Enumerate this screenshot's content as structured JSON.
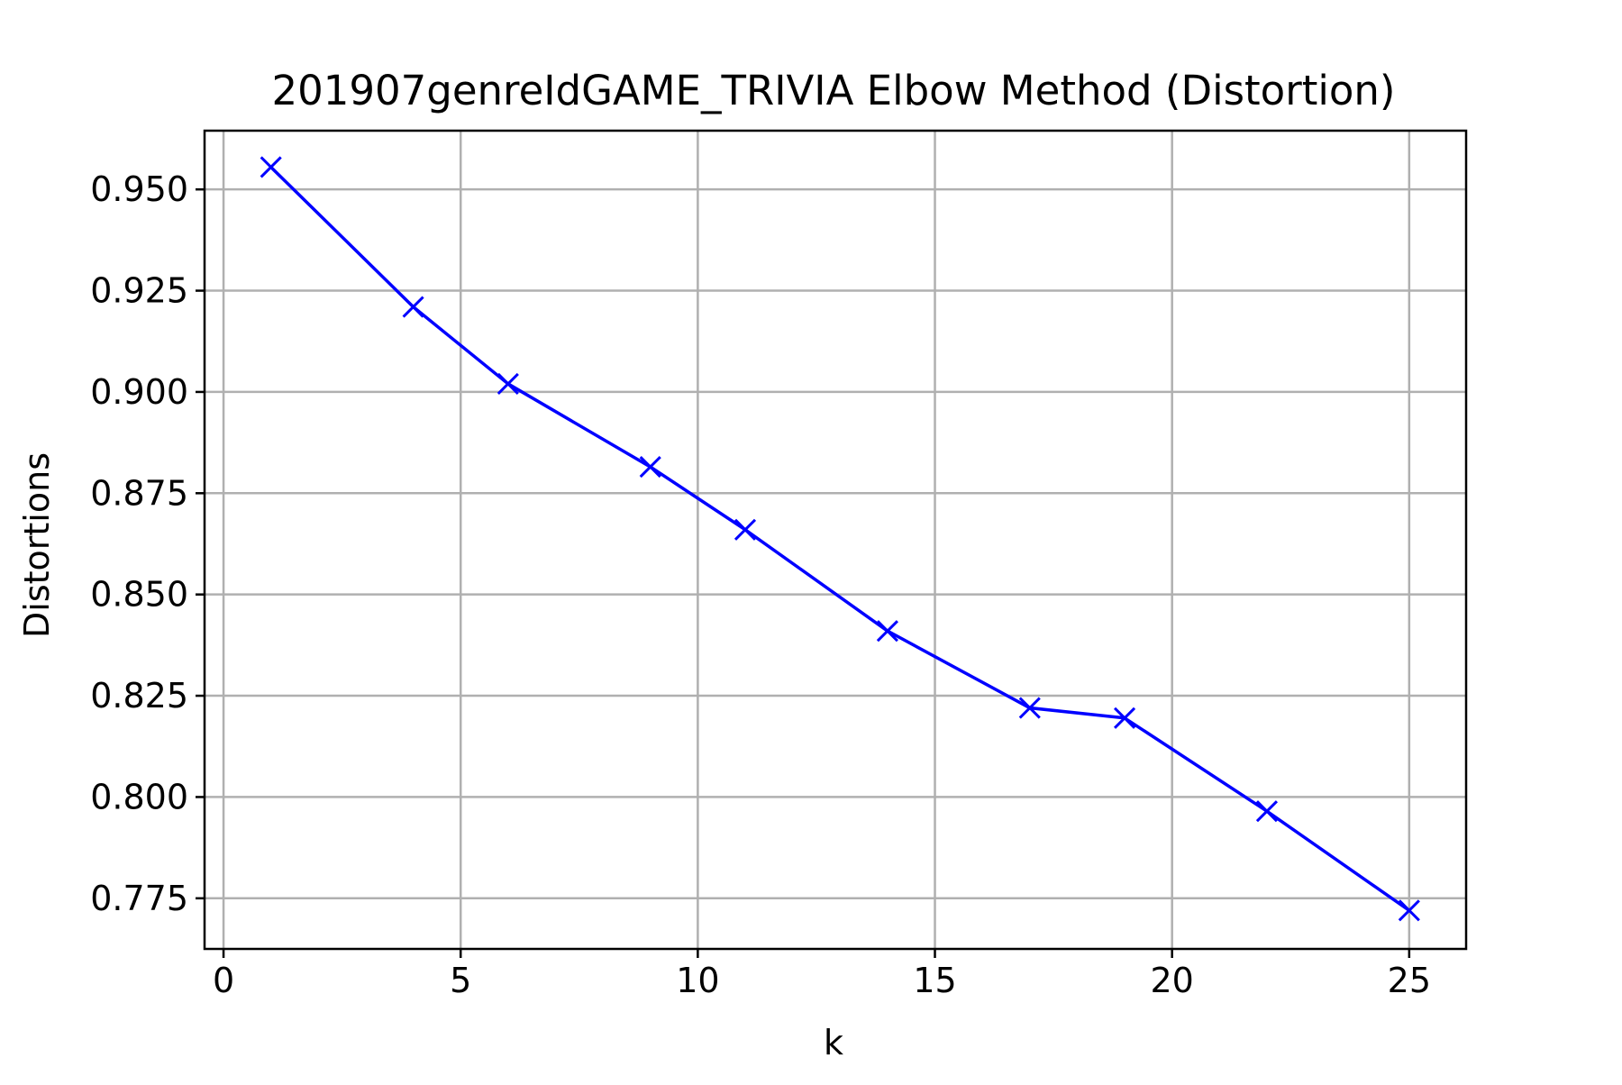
{
  "chart_data": {
    "type": "line",
    "title": "201907genreIdGAME_TRIVIA Elbow Method (Distortion)",
    "xlabel": "k",
    "ylabel": "Distortions",
    "xlim": [
      -0.4,
      26.2
    ],
    "ylim": [
      0.7625,
      0.9645
    ],
    "xticks": [
      0,
      5,
      10,
      15,
      20,
      25
    ],
    "xtick_labels": [
      "0",
      "5",
      "10",
      "15",
      "20",
      "25"
    ],
    "yticks": [
      0.775,
      0.8,
      0.825,
      0.85,
      0.875,
      0.9,
      0.925,
      0.95
    ],
    "ytick_labels": [
      "0.775",
      "0.800",
      "0.825",
      "0.850",
      "0.875",
      "0.900",
      "0.925",
      "0.950"
    ],
    "grid": true,
    "series": [
      {
        "color": "#0000ff",
        "marker": "x",
        "x": [
          1,
          4,
          6,
          9,
          11,
          14,
          17,
          19,
          22,
          25
        ],
        "y": [
          0.9555,
          0.921,
          0.902,
          0.8815,
          0.866,
          0.841,
          0.822,
          0.8195,
          0.7965,
          0.772
        ]
      }
    ]
  }
}
